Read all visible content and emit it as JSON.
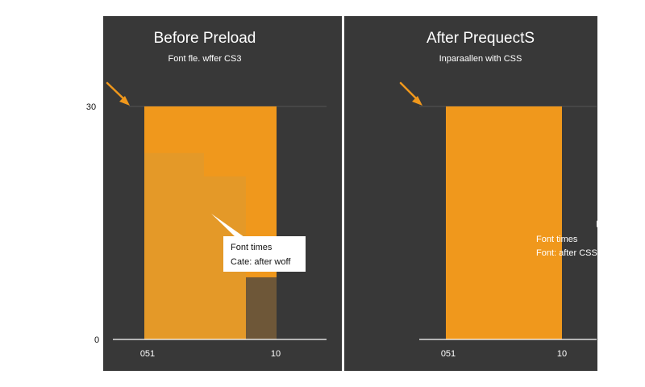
{
  "colors": {
    "panel": "#383838",
    "bar": "#f0981c",
    "bar_faded": "#e09a2c",
    "bar_dark": "#6e5738",
    "text_light": "#ffffff",
    "text_dark": "#111111",
    "arrow": "#f0981c",
    "gridline": "#555555"
  },
  "chart_data": [
    {
      "type": "bar",
      "title": "Before Preload",
      "subtitle": "Font fle. wffer CS3",
      "ylim": [
        0,
        30
      ],
      "y_ticks": [
        "30",
        "0"
      ],
      "x_ticks": [
        "051",
        "10"
      ],
      "grid": false,
      "value": 30,
      "overlay_levels": [
        24,
        21,
        8
      ],
      "annotation": [
        "Font times",
        "Cate: after woff"
      ],
      "arrow_icon": "arrow-down-right-icon"
    },
    {
      "type": "bar",
      "title": "After PrequectS",
      "subtitle": "Inparaallen with CSS",
      "ylim": [
        0,
        30
      ],
      "x_ticks": [
        "051",
        "10"
      ],
      "grid": false,
      "value": 30,
      "annotation": [
        "Font times",
        "Font: after CSS"
      ],
      "arrow_icon": "arrow-down-right-icon"
    }
  ]
}
